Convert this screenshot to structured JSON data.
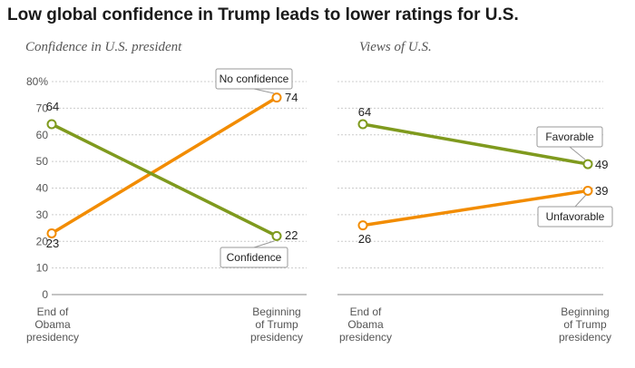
{
  "title": "Low global confidence in Trump leads to lower ratings for U.S.",
  "colors": {
    "green": "#7f9a1e",
    "orange": "#f28c00",
    "grid": "#cccccc"
  },
  "chart_data": [
    {
      "type": "line",
      "subtitle": "Confidence in U.S. president",
      "categories": [
        "End of\nObama\npresidency",
        "Beginning\nof Trump\npresidency"
      ],
      "ylim": [
        0,
        80
      ],
      "yticks": [
        "0",
        "10",
        "20",
        "30",
        "40",
        "50",
        "60",
        "70",
        "80%"
      ],
      "series": [
        {
          "name": "No confidence",
          "values": [
            23,
            74
          ],
          "labels": [
            "23",
            "74"
          ],
          "color": "orange"
        },
        {
          "name": "Confidence",
          "values": [
            64,
            22
          ],
          "labels": [
            "64",
            "22"
          ],
          "color": "green"
        }
      ]
    },
    {
      "type": "line",
      "subtitle": "Views of U.S.",
      "categories": [
        "End of\nObama\npresidency",
        "Beginning\nof Trump\npresidency"
      ],
      "ylim": [
        0,
        80
      ],
      "series": [
        {
          "name": "Favorable",
          "values": [
            64,
            49
          ],
          "labels": [
            "64",
            "49"
          ],
          "color": "green"
        },
        {
          "name": "Unfavorable",
          "values": [
            26,
            39
          ],
          "labels": [
            "26",
            "39"
          ],
          "color": "orange"
        }
      ]
    }
  ]
}
